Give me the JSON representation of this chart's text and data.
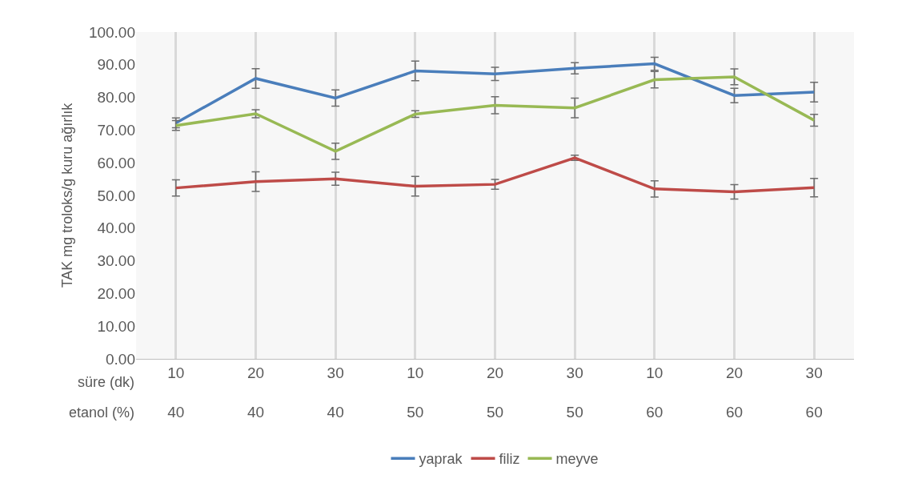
{
  "chart_data": {
    "type": "line",
    "ylabel": "TAK mg troloks/g kuru ağırlık",
    "categories": [
      "10\n40",
      "20\n40",
      "30\n40",
      "10\n50",
      "20\n50",
      "30\n50",
      "10\n60",
      "20\n60",
      "30\n60"
    ],
    "annotations": [
      "süre (dk)",
      "etanol (%)"
    ],
    "series": [
      {
        "name": "yaprak",
        "color": "#4a7ebb",
        "values": [
          72.2,
          85.8,
          79.8,
          88.1,
          87.2,
          88.9,
          90.3,
          80.6,
          81.6
        ],
        "errors": [
          1.5,
          3,
          2.5,
          3,
          2,
          1.7,
          2,
          2.2,
          3
        ]
      },
      {
        "name": "filiz",
        "color": "#be4b48",
        "values": [
          52.3,
          54.2,
          55.1,
          52.8,
          53.4,
          61.5,
          52.0,
          51.1,
          52.4
        ],
        "errors": [
          2.5,
          3,
          2,
          3,
          1.5,
          0.8,
          2.5,
          2.2,
          2.8
        ]
      },
      {
        "name": "meyve",
        "color": "#98b954",
        "values": [
          71.4,
          75.0,
          63.5,
          74.9,
          77.6,
          76.8,
          85.4,
          86.3,
          73.0
        ],
        "errors": [
          1.5,
          1.2,
          2.5,
          1,
          2.6,
          3,
          2.5,
          2.4,
          1.8
        ]
      }
    ],
    "ylim": [
      0,
      100
    ],
    "yticks": [
      {
        "value": 0,
        "label": "0.00"
      },
      {
        "value": 10,
        "label": "10.00"
      },
      {
        "value": 20,
        "label": "20.00"
      },
      {
        "value": 30,
        "label": "30.00"
      },
      {
        "value": 40,
        "label": "40.00"
      },
      {
        "value": 50,
        "label": "50.00"
      },
      {
        "value": 60,
        "label": "60.00"
      },
      {
        "value": 70,
        "label": "70.00"
      },
      {
        "value": 80,
        "label": "80.00"
      },
      {
        "value": 90,
        "label": "90.00"
      },
      {
        "value": 100,
        "label": "100.00"
      }
    ],
    "grid": "x",
    "legend": "bottom",
    "marker": "none",
    "line_style": "solid"
  }
}
